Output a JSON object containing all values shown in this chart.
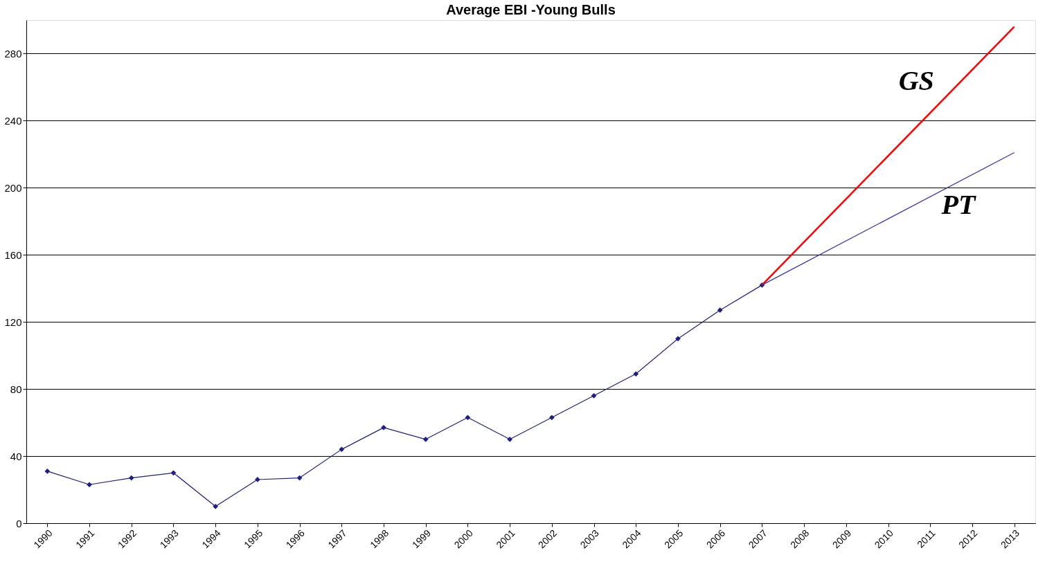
{
  "chart_data": {
    "type": "line",
    "title": "Average EBI -Young Bulls",
    "categories": [
      "1990",
      "1991",
      "1992",
      "1993",
      "1994",
      "1995",
      "1996",
      "1997",
      "1998",
      "1999",
      "2000",
      "2001",
      "2002",
      "2003",
      "2004",
      "2005",
      "2006",
      "2007",
      "2008",
      "2009",
      "2010",
      "2011",
      "2012",
      "2013"
    ],
    "series": [
      {
        "color": "#1f1f80",
        "marker": "diamond",
        "values": [
          31,
          23,
          27,
          30,
          10,
          26,
          27,
          44,
          57,
          50,
          63,
          50,
          63,
          76,
          89,
          110,
          127,
          142,
          null,
          null,
          null,
          null,
          null,
          null
        ]
      },
      {
        "name": "GS",
        "color": "#ff0000",
        "marker": "none",
        "values": [
          null,
          null,
          null,
          null,
          null,
          null,
          null,
          null,
          null,
          null,
          null,
          null,
          null,
          null,
          null,
          null,
          null,
          142,
          null,
          null,
          null,
          null,
          null,
          296
        ]
      },
      {
        "name": "PT",
        "color": "#3030b0",
        "marker": "none",
        "values": [
          null,
          null,
          null,
          null,
          null,
          null,
          null,
          null,
          null,
          null,
          null,
          null,
          null,
          null,
          null,
          null,
          null,
          142,
          null,
          null,
          null,
          null,
          null,
          221
        ]
      }
    ],
    "ylim": [
      0,
      300
    ],
    "yticks": [
      0,
      40,
      80,
      120,
      160,
      200,
      240,
      280
    ],
    "grid": "y",
    "line_style": "solid"
  }
}
